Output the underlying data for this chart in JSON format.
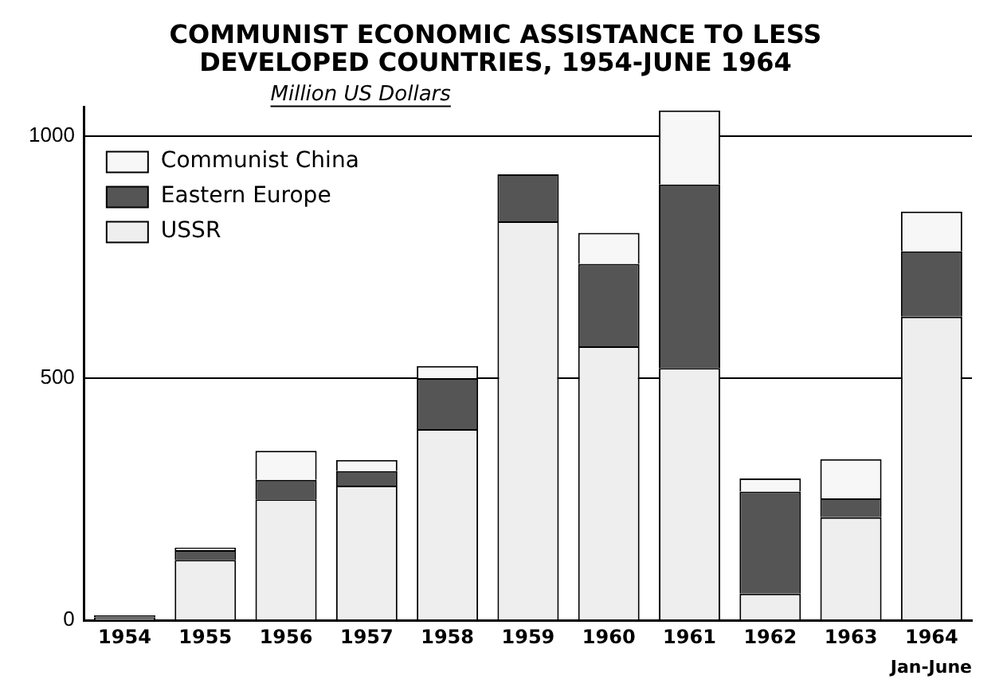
{
  "chart_data": {
    "type": "bar",
    "title": "COMMUNIST ECONOMIC ASSISTANCE TO LESS DEVELOPED COUNTRIES, 1954-JUNE 1964",
    "ylabel": "Million US Dollars",
    "categories": [
      "1954",
      "1955",
      "1956",
      "1957",
      "1958",
      "1959",
      "1960",
      "1961",
      "1962",
      "1963",
      "1964"
    ],
    "stacked": true,
    "series": [
      {
        "name": "USSR",
        "color": "#eeeeee",
        "values": [
          6,
          125,
          250,
          278,
          395,
          824,
          566,
          521,
          55,
          213,
          627
        ]
      },
      {
        "name": "Eastern Europe",
        "color": "#555555",
        "values": [
          4,
          20,
          40,
          30,
          105,
          97,
          170,
          379,
          211,
          39,
          135
        ]
      },
      {
        "name": "Communist China",
        "color": "#f7f7f7",
        "values": [
          0,
          5,
          60,
          23,
          25,
          0,
          64,
          153,
          27,
          81,
          82
        ]
      }
    ],
    "ylim": [
      0,
      1060
    ],
    "yticks": [
      0,
      500,
      1000
    ],
    "grid": "y",
    "legend": "top left",
    "annotations": [
      "Jan-June"
    ]
  }
}
